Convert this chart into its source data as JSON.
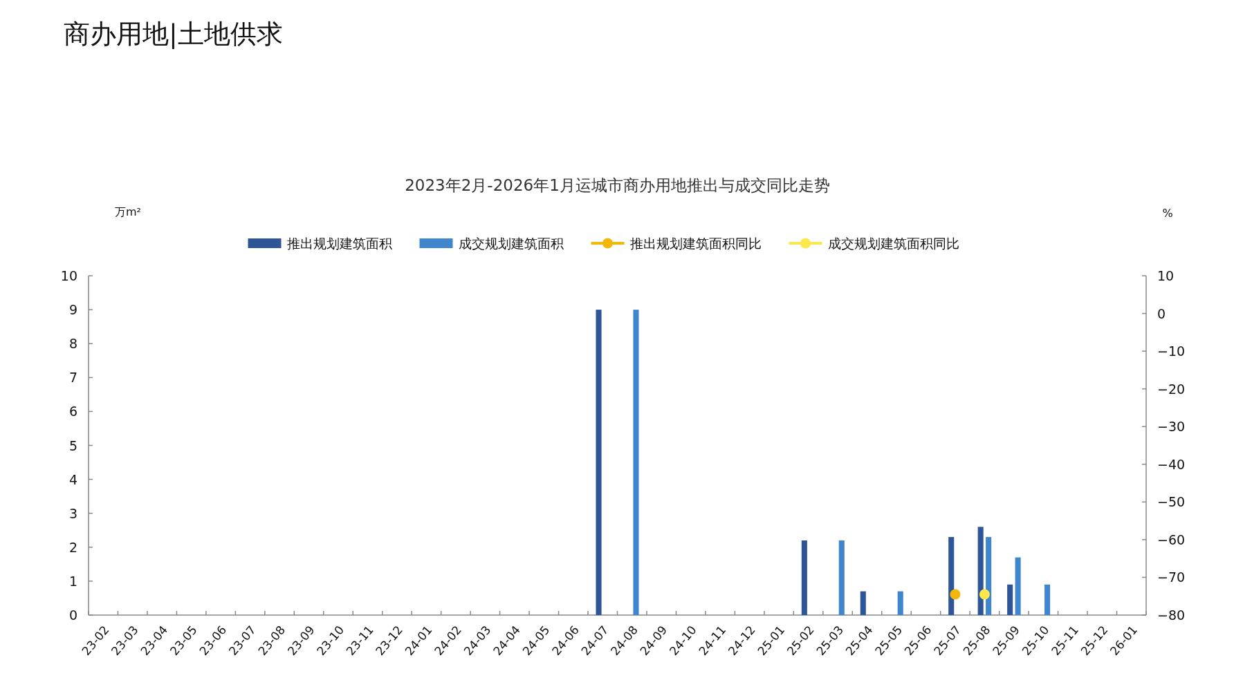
{
  "chart_data": {
    "type": "bar",
    "title": "商办用地|土地供求",
    "subtitle": "2023年2月-2026年1月运城市商办用地推出与成交同比走势",
    "ylabel": "万m²",
    "y2label": "%",
    "categories": [
      "23-02",
      "23-03",
      "23-04",
      "23-05",
      "23-06",
      "23-07",
      "23-08",
      "23-09",
      "23-10",
      "23-11",
      "23-12",
      "24-01",
      "24-02",
      "24-03",
      "24-04",
      "24-05",
      "24-06",
      "24-07",
      "24-08",
      "24-09",
      "24-10",
      "24-11",
      "24-12",
      "25-01",
      "25-02",
      "25-03",
      "25-04",
      "25-05",
      "25-06",
      "25-07",
      "25-08",
      "25-09",
      "25-10",
      "25-11",
      "25-12",
      "26-01"
    ],
    "series": [
      {
        "name": "推出规划建筑面积",
        "color": "#2e5597",
        "values": [
          null,
          null,
          null,
          null,
          null,
          null,
          null,
          null,
          null,
          null,
          null,
          null,
          null,
          null,
          null,
          null,
          null,
          9,
          null,
          null,
          null,
          null,
          null,
          null,
          2.2,
          null,
          0.7,
          null,
          null,
          2.3,
          2.6,
          0.9,
          null,
          null,
          null,
          null
        ]
      },
      {
        "name": "成交规划建筑面积",
        "color": "#3f86cc",
        "values": [
          null,
          null,
          null,
          null,
          null,
          null,
          null,
          null,
          null,
          null,
          null,
          null,
          null,
          null,
          null,
          null,
          null,
          null,
          9,
          null,
          null,
          null,
          null,
          null,
          null,
          2.2,
          null,
          0.7,
          null,
          null,
          2.3,
          1.7,
          0.9,
          null,
          null,
          null
        ]
      },
      {
        "name": "推出规划建筑面积同比",
        "type": "line",
        "axis": "y2",
        "color": "#f5b60a",
        "values": [
          null,
          null,
          null,
          null,
          null,
          null,
          null,
          null,
          null,
          null,
          null,
          null,
          null,
          null,
          null,
          null,
          null,
          null,
          null,
          null,
          null,
          null,
          null,
          null,
          null,
          null,
          null,
          null,
          null,
          -74.5,
          null,
          null,
          null,
          null,
          null,
          null
        ]
      },
      {
        "name": "成交规划建筑面积同比",
        "type": "line",
        "axis": "y2",
        "color": "#fde74c",
        "values": [
          null,
          null,
          null,
          null,
          null,
          null,
          null,
          null,
          null,
          null,
          null,
          null,
          null,
          null,
          null,
          null,
          null,
          null,
          null,
          null,
          null,
          null,
          null,
          null,
          null,
          null,
          null,
          null,
          null,
          null,
          -74.5,
          null,
          null,
          null,
          null,
          null
        ]
      }
    ],
    "ylim": [
      0,
      10
    ],
    "yticks": [
      0,
      1,
      2,
      3,
      4,
      5,
      6,
      7,
      8,
      9,
      10
    ],
    "y2lim": [
      -80,
      10
    ],
    "y2ticks": [
      -80,
      -70,
      -60,
      -50,
      -40,
      -30,
      -20,
      -10,
      0,
      10
    ],
    "marker": "circle",
    "legend": "top",
    "grid": false
  }
}
